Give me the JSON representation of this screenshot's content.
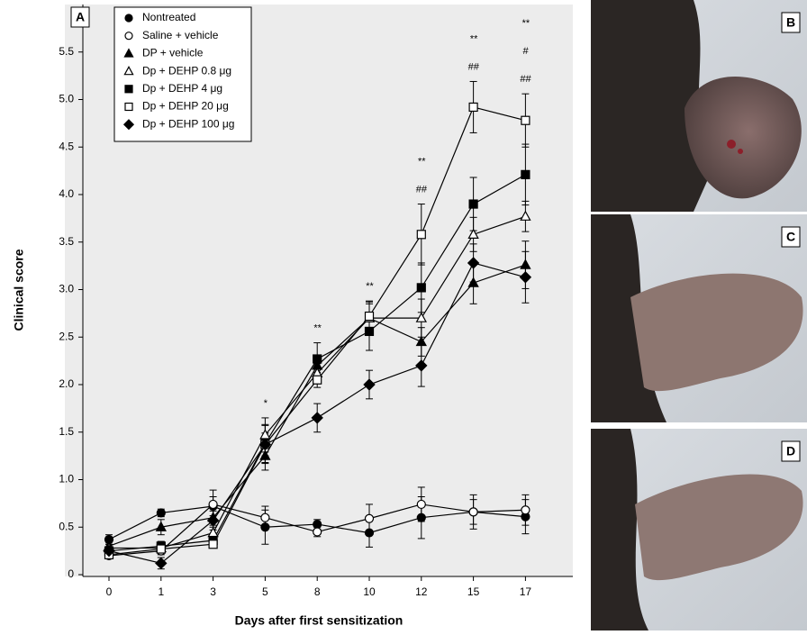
{
  "chart_data": {
    "type": "line",
    "panel_labels": [
      "A",
      "B",
      "C",
      "D"
    ],
    "y_label": "Clinical score",
    "x_label": "Days after first sensitization",
    "categories": [
      "0",
      "1",
      "3",
      "5",
      "8",
      "10",
      "12",
      "15",
      "17"
    ],
    "ylim": [
      0,
      6
    ],
    "yticks": [
      0,
      0.5,
      {
        "value": 1,
        "label": "1.0"
      },
      1.5,
      {
        "value": 2,
        "label": "2.0"
      },
      2.5,
      {
        "value": 3,
        "label": "3.0"
      },
      3.5,
      {
        "value": 4,
        "label": "4.0"
      },
      4.5,
      {
        "value": 5,
        "label": "5.0"
      },
      5.5
    ],
    "legend": "upper left",
    "series": [
      {
        "name": "Nontreated",
        "color": "#000000",
        "marker": "circle",
        "filled": true,
        "values": [
          0.37,
          0.65,
          0.72,
          0.5,
          0.53,
          0.44,
          0.6,
          0.66,
          0.61
        ],
        "errors": [
          0.05,
          0.04,
          0.1,
          0.18,
          0.05,
          0.15,
          0.22,
          0.18,
          0.18
        ]
      },
      {
        "name": "Saline + vehicle",
        "color": "#000000",
        "marker": "circle",
        "filled": false,
        "values": [
          0.2,
          0.25,
          0.74,
          0.6,
          0.45,
          0.59,
          0.74,
          0.66,
          0.68
        ],
        "errors": [
          0.03,
          0.04,
          0.15,
          0.12,
          0.05,
          0.15,
          0.18,
          0.13,
          0.16
        ]
      },
      {
        "name": "DP + vehicle",
        "color": "#000000",
        "marker": "triangle",
        "filled": true,
        "values": [
          0.3,
          0.5,
          0.6,
          1.25,
          2.2,
          2.7,
          2.45,
          3.07,
          3.26
        ],
        "errors": [
          0.04,
          0.08,
          0.1,
          0.15,
          0.1,
          0.15,
          0.15,
          0.22,
          0.25
        ]
      },
      {
        "name": "Dp + DEHP 0.8 μg",
        "color": "#000000",
        "marker": "triangle",
        "filled": false,
        "values": [
          0.28,
          0.28,
          0.44,
          1.47,
          2.12,
          2.7,
          2.7,
          3.58,
          3.77
        ],
        "errors": [
          0.04,
          0.04,
          0.08,
          0.18,
          0.1,
          0.18,
          0.2,
          0.18,
          0.16
        ]
      },
      {
        "name": "Dp + DEHP 4 μg",
        "color": "#000000",
        "marker": "square",
        "filled": true,
        "values": [
          0.25,
          0.3,
          0.36,
          1.38,
          2.27,
          2.56,
          3.02,
          3.9,
          4.21
        ],
        "errors": [
          0.04,
          0.05,
          0.06,
          0.2,
          0.17,
          0.2,
          0.26,
          0.28,
          0.32
        ]
      },
      {
        "name": "Dp + DEHP 20 μg",
        "color": "#000000",
        "marker": "square",
        "filled": false,
        "values": [
          0.21,
          0.27,
          0.32,
          1.37,
          2.05,
          2.72,
          3.58,
          4.92,
          4.78
        ],
        "errors": [
          0.03,
          0.04,
          0.04,
          0.12,
          0.08,
          0.15,
          0.32,
          0.27,
          0.28
        ]
      },
      {
        "name": "Dp + DEHP 100 μg",
        "color": "#000000",
        "marker": "diamond",
        "filled": true,
        "values": [
          0.25,
          0.12,
          0.57,
          1.37,
          1.65,
          2.0,
          2.2,
          3.28,
          3.13
        ],
        "errors": [
          0.04,
          0.06,
          0.1,
          0.2,
          0.15,
          0.15,
          0.22,
          0.2,
          0.27
        ]
      }
    ],
    "annotations": [
      null,
      null,
      null,
      [
        "*"
      ],
      [
        "**"
      ],
      [
        "**"
      ],
      [
        "**",
        "##"
      ],
      [
        "**",
        "##"
      ],
      [
        "**",
        "#",
        "##"
      ]
    ]
  }
}
